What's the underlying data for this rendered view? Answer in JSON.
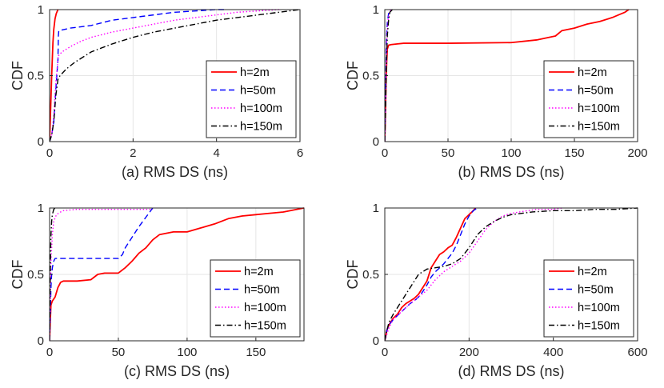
{
  "colors": {
    "h2": "#ff0000",
    "h50": "#0000ff",
    "h100": "#ff00ff",
    "h150": "#000000"
  },
  "chart_data": [
    {
      "type": "line",
      "title": "",
      "xlabel": "(a) RMS DS (ns)",
      "ylabel": "CDF",
      "xlim": [
        0,
        6
      ],
      "ylim": [
        0,
        1
      ],
      "xticks": [
        "0",
        "2",
        "4",
        "6"
      ],
      "yticks": [
        "0",
        "0.5",
        "1"
      ],
      "grid": true,
      "legend_position": "bottom-right",
      "series": [
        {
          "name": "h=2m",
          "style": "solid",
          "x": [
            0,
            0.02,
            0.05,
            0.08,
            0.1,
            0.13,
            0.16,
            0.2
          ],
          "y": [
            0,
            0.2,
            0.5,
            0.75,
            0.85,
            0.93,
            0.97,
            1
          ]
        },
        {
          "name": "h=50m",
          "style": "dashed",
          "x": [
            0,
            0.05,
            0.1,
            0.15,
            0.2,
            0.21,
            0.22,
            0.5,
            1,
            1.5,
            2,
            2.5,
            3,
            3.5,
            4,
            4.2
          ],
          "y": [
            0,
            0.05,
            0.15,
            0.4,
            0.62,
            0.8,
            0.84,
            0.86,
            0.88,
            0.92,
            0.94,
            0.96,
            0.98,
            0.99,
            1,
            1
          ]
        },
        {
          "name": "h=100m",
          "style": "dotted",
          "x": [
            0,
            0.05,
            0.1,
            0.15,
            0.2,
            0.21,
            0.3,
            0.5,
            0.75,
            1,
            1.5,
            2,
            2.5,
            3,
            3.5,
            4,
            4.5,
            5,
            5.5
          ],
          "y": [
            0,
            0.05,
            0.2,
            0.45,
            0.62,
            0.65,
            0.68,
            0.72,
            0.76,
            0.79,
            0.83,
            0.86,
            0.89,
            0.92,
            0.94,
            0.96,
            0.98,
            0.99,
            1
          ]
        },
        {
          "name": "h=150m",
          "style": "dashdot",
          "x": [
            0,
            0.05,
            0.1,
            0.15,
            0.2,
            0.25,
            0.4,
            0.6,
            0.8,
            1,
            1.5,
            2,
            2.5,
            3,
            3.5,
            4,
            4.5,
            5,
            5.5,
            6
          ],
          "y": [
            0,
            0.05,
            0.15,
            0.35,
            0.47,
            0.5,
            0.55,
            0.6,
            0.64,
            0.68,
            0.74,
            0.79,
            0.83,
            0.86,
            0.89,
            0.92,
            0.94,
            0.96,
            0.98,
            1
          ]
        }
      ]
    },
    {
      "type": "line",
      "title": "",
      "xlabel": "(b) RMS DS (ns)",
      "ylabel": "CDF",
      "xlim": [
        0,
        200
      ],
      "ylim": [
        0,
        1
      ],
      "xticks": [
        "0",
        "50",
        "100",
        "150",
        "200"
      ],
      "yticks": [
        "0",
        "0.5",
        "1"
      ],
      "grid": true,
      "legend_position": "bottom-right",
      "series": [
        {
          "name": "h=2m",
          "style": "solid",
          "x": [
            0,
            0.5,
            1,
            1.5,
            2,
            3,
            5,
            10,
            15,
            50,
            100,
            120,
            135,
            140,
            150,
            160,
            170,
            180,
            185,
            190,
            193
          ],
          "y": [
            0,
            0.2,
            0.45,
            0.6,
            0.7,
            0.73,
            0.735,
            0.74,
            0.745,
            0.745,
            0.75,
            0.77,
            0.8,
            0.84,
            0.86,
            0.89,
            0.91,
            0.94,
            0.96,
            0.98,
            1
          ]
        },
        {
          "name": "h=50m",
          "style": "dashed",
          "x": [
            0,
            0.5,
            1,
            1.5,
            2,
            3,
            4
          ],
          "y": [
            0,
            0.3,
            0.6,
            0.8,
            0.9,
            0.97,
            1
          ]
        },
        {
          "name": "h=100m",
          "style": "dotted",
          "x": [
            0,
            0.5,
            1,
            1.5,
            2,
            3,
            4,
            5
          ],
          "y": [
            0,
            0.25,
            0.55,
            0.75,
            0.86,
            0.95,
            0.99,
            1
          ]
        },
        {
          "name": "h=150m",
          "style": "dashdot",
          "x": [
            0,
            0.5,
            1,
            1.5,
            2,
            3,
            4,
            6
          ],
          "y": [
            0,
            0.2,
            0.45,
            0.65,
            0.8,
            0.92,
            0.98,
            1
          ]
        }
      ]
    },
    {
      "type": "line",
      "title": "",
      "xlabel": "(c) RMS DS (ns)",
      "ylabel": "CDF",
      "xlim": [
        0,
        185
      ],
      "ylim": [
        0,
        1
      ],
      "xticks": [
        "0",
        "50",
        "100",
        "150"
      ],
      "yticks": [
        "0",
        "0.5",
        "1"
      ],
      "grid": true,
      "legend_position": "bottom-right",
      "series": [
        {
          "name": "h=2m",
          "style": "solid",
          "x": [
            0,
            0.5,
            1,
            2,
            4,
            6,
            8,
            10,
            20,
            30,
            35,
            40,
            50,
            55,
            60,
            65,
            70,
            75,
            80,
            90,
            100,
            110,
            120,
            130,
            140,
            150,
            160,
            170,
            180,
            185
          ],
          "y": [
            0,
            0.15,
            0.27,
            0.3,
            0.33,
            0.4,
            0.44,
            0.45,
            0.45,
            0.46,
            0.5,
            0.51,
            0.51,
            0.55,
            0.6,
            0.66,
            0.7,
            0.76,
            0.8,
            0.82,
            0.82,
            0.85,
            0.88,
            0.92,
            0.94,
            0.95,
            0.96,
            0.97,
            0.99,
            1
          ]
        },
        {
          "name": "h=50m",
          "style": "dashed",
          "x": [
            0,
            0.5,
            1,
            1.5,
            2,
            3,
            4,
            5,
            10,
            50,
            53,
            55,
            60,
            65,
            70,
            75
          ],
          "y": [
            0,
            0.2,
            0.4,
            0.5,
            0.55,
            0.6,
            0.62,
            0.62,
            0.62,
            0.62,
            0.65,
            0.7,
            0.78,
            0.86,
            0.93,
            1
          ]
        },
        {
          "name": "h=100m",
          "style": "dotted",
          "x": [
            0,
            0.5,
            1,
            2,
            3,
            5,
            8,
            10,
            20,
            40,
            60,
            75
          ],
          "y": [
            0,
            0.3,
            0.6,
            0.8,
            0.9,
            0.95,
            0.97,
            0.98,
            0.99,
            0.99,
            0.99,
            0.99
          ]
        },
        {
          "name": "h=150m",
          "style": "dashdot",
          "x": [
            0,
            0.3,
            0.6,
            1,
            1.5,
            2,
            3,
            4
          ],
          "y": [
            0,
            0.3,
            0.6,
            0.8,
            0.9,
            0.95,
            0.99,
            1
          ]
        }
      ]
    },
    {
      "type": "line",
      "title": "",
      "xlabel": "(d) RMS DS (ns)",
      "ylabel": "CDF",
      "xlim": [
        0,
        600
      ],
      "ylim": [
        0,
        1
      ],
      "xticks": [
        "0",
        "200",
        "400",
        "600"
      ],
      "yticks": [
        "0",
        "0.5",
        "1"
      ],
      "grid": true,
      "legend_position": "bottom-right",
      "series": [
        {
          "name": "h=2m",
          "style": "solid",
          "x": [
            0,
            5,
            10,
            20,
            30,
            40,
            50,
            60,
            70,
            80,
            90,
            100,
            110,
            120,
            130,
            140,
            150,
            160,
            170,
            180,
            190,
            200,
            210,
            215
          ],
          "y": [
            0,
            0.08,
            0.12,
            0.17,
            0.2,
            0.25,
            0.28,
            0.3,
            0.32,
            0.35,
            0.4,
            0.45,
            0.55,
            0.6,
            0.65,
            0.67,
            0.7,
            0.72,
            0.78,
            0.85,
            0.92,
            0.95,
            0.98,
            1
          ]
        },
        {
          "name": "h=50m",
          "style": "dashed",
          "x": [
            0,
            5,
            10,
            20,
            30,
            40,
            50,
            60,
            70,
            80,
            90,
            100,
            110,
            120,
            130,
            140,
            150,
            160,
            170,
            180,
            190,
            200,
            210,
            220
          ],
          "y": [
            0,
            0.08,
            0.12,
            0.16,
            0.19,
            0.22,
            0.25,
            0.28,
            0.3,
            0.33,
            0.37,
            0.42,
            0.48,
            0.52,
            0.55,
            0.58,
            0.62,
            0.66,
            0.72,
            0.8,
            0.88,
            0.94,
            0.98,
            1
          ]
        },
        {
          "name": "h=100m",
          "style": "dotted",
          "x": [
            0,
            10,
            20,
            40,
            60,
            80,
            100,
            120,
            140,
            160,
            180,
            200,
            220,
            240,
            260,
            280,
            300,
            320,
            340,
            360,
            380,
            400,
            420
          ],
          "y": [
            0,
            0.1,
            0.16,
            0.22,
            0.28,
            0.33,
            0.38,
            0.46,
            0.52,
            0.56,
            0.6,
            0.66,
            0.75,
            0.84,
            0.9,
            0.94,
            0.96,
            0.97,
            0.98,
            0.99,
            0.99,
            0.99,
            1
          ]
        },
        {
          "name": "h=150m",
          "style": "dashdot",
          "x": [
            0,
            5,
            10,
            20,
            30,
            40,
            50,
            60,
            70,
            80,
            90,
            100,
            120,
            140,
            160,
            180,
            200,
            220,
            240,
            260,
            280,
            300,
            350,
            400,
            450,
            500,
            550,
            600
          ],
          "y": [
            0,
            0.08,
            0.14,
            0.2,
            0.25,
            0.3,
            0.35,
            0.4,
            0.45,
            0.5,
            0.52,
            0.54,
            0.55,
            0.56,
            0.58,
            0.62,
            0.7,
            0.8,
            0.86,
            0.9,
            0.93,
            0.95,
            0.97,
            0.98,
            0.98,
            0.99,
            0.99,
            1
          ]
        }
      ]
    }
  ]
}
